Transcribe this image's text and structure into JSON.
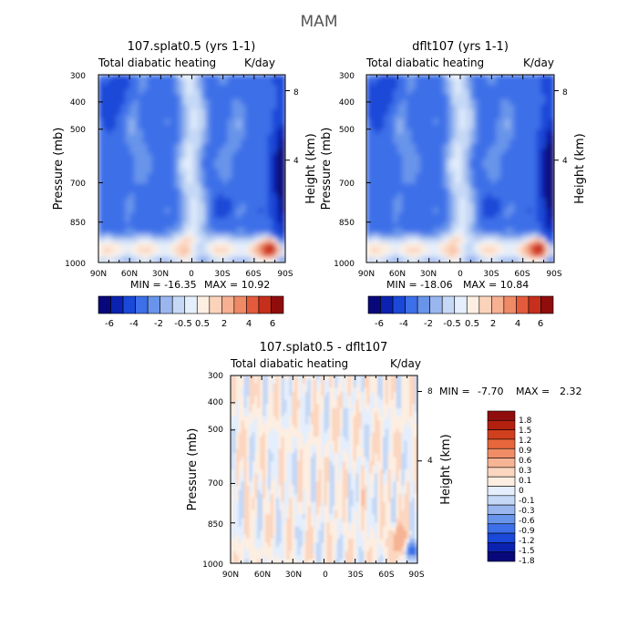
{
  "figure_title": "MAM",
  "chart_data": [
    {
      "type": "heatmap",
      "title": "107.splat0.5 (yrs 1-1)",
      "subtitle_left": "Total diabatic heating",
      "subtitle_right": "K/day",
      "ylabel": "Pressure (mb)",
      "ylabel_right": "Height (km)",
      "x_ticks": [
        "90N",
        "60N",
        "30N",
        "0",
        "30S",
        "60S",
        "90S"
      ],
      "y_ticks": [
        "300",
        "400",
        "500",
        "700",
        "850",
        "1000"
      ],
      "y_ticks_right": [
        "8",
        "4"
      ],
      "ylim": [
        1000,
        300
      ],
      "min_label": "MIN = -16.35",
      "max_label": "MAX = 10.92",
      "min": -16.35,
      "max": 10.92,
      "colorbar_labels": [
        "-6",
        "-4",
        "-2",
        "-0.5",
        "0.5",
        "2",
        "4",
        "6"
      ]
    },
    {
      "type": "heatmap",
      "title": "dflt107 (yrs 1-1)",
      "subtitle_left": "Total diabatic heating",
      "subtitle_right": "K/day",
      "ylabel": "Pressure (mb)",
      "ylabel_right": "Height (km)",
      "x_ticks": [
        "90N",
        "60N",
        "30N",
        "0",
        "30S",
        "60S",
        "90S"
      ],
      "y_ticks": [
        "300",
        "400",
        "500",
        "700",
        "850",
        "1000"
      ],
      "y_ticks_right": [
        "8",
        "4"
      ],
      "ylim": [
        1000,
        300
      ],
      "min_label": "MIN = -18.06",
      "max_label": "MAX = 10.84",
      "min": -18.06,
      "max": 10.84,
      "colorbar_labels": [
        "-6",
        "-4",
        "-2",
        "-0.5",
        "0.5",
        "2",
        "4",
        "6"
      ]
    },
    {
      "type": "heatmap",
      "title": "107.splat0.5 - dflt107",
      "subtitle_left": "Total diabatic heating",
      "subtitle_right": "K/day",
      "ylabel": "Pressure (mb)",
      "ylabel_right": "Height (km)",
      "x_ticks": [
        "90N",
        "60N",
        "30N",
        "0",
        "30S",
        "60S",
        "90S"
      ],
      "y_ticks": [
        "300",
        "400",
        "500",
        "700",
        "850",
        "1000"
      ],
      "y_ticks_right": [
        "8",
        "4"
      ],
      "ylim": [
        1000,
        300
      ],
      "min_label": "MIN =",
      "min_value": "-7.70",
      "max_label": "MAX =",
      "max_value": "2.32",
      "min": -7.7,
      "max": 2.32,
      "colorbar_labels": [
        "1.8",
        "1.5",
        "1.2",
        "0.9",
        "0.6",
        "0.3",
        "0.1",
        "0",
        "-0.1",
        "-0.3",
        "-0.6",
        "-0.9",
        "-1.2",
        "-1.5",
        "-1.8"
      ]
    }
  ],
  "palettes": {
    "full": [
      "#08087a",
      "#0b22b0",
      "#1a48d8",
      "#3c6fe8",
      "#6894ea",
      "#9ab6ef",
      "#c5d8f5",
      "#e4eefc",
      "#fdeee2",
      "#fbd3bb",
      "#f6b092",
      "#ef8a66",
      "#e35b3c",
      "#c52f1c",
      "#8f0d0d"
    ],
    "diff": [
      "#8f0d0d",
      "#b3200f",
      "#d0401f",
      "#e8663b",
      "#f08d66",
      "#f6b494",
      "#fbd6c0",
      "#fdeee2",
      "#e4eefc",
      "#c5d8f5",
      "#9ab6ef",
      "#6894ea",
      "#3c6fe8",
      "#1a48d8",
      "#0b22b0",
      "#08087a"
    ]
  }
}
